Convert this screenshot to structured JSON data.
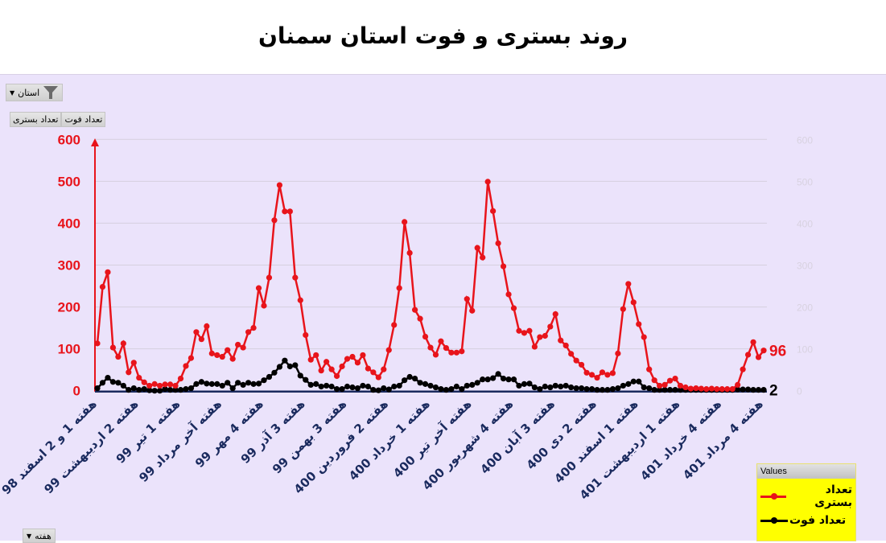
{
  "title": "روند بستری و فوت استان سمنان",
  "filters": {
    "province_label": "استان",
    "fields": [
      "تعداد بستری",
      "تعداد فوت"
    ],
    "week_label": "هفته"
  },
  "colors": {
    "hospitalized": "#e8141b",
    "deaths": "#000000",
    "background": "#ebe3fb",
    "axis_labels": "#1a2a5e",
    "legend_bg": "#ffff00"
  },
  "legend": {
    "header": "Values",
    "items": [
      "تعداد بستری",
      "تعداد فوت"
    ]
  },
  "chart_data": {
    "type": "line",
    "title": "روند بستری و فوت استان سمنان",
    "ylim": [
      0,
      600
    ],
    "yticks": [
      "0",
      "100",
      "200",
      "300",
      "400",
      "500",
      "600"
    ],
    "grid": true,
    "legend_position": "bottom-right",
    "category_labels": [
      "هفته 1 و 2 اسفند 98",
      "هفته 2 اردیبهشت 99",
      "هفته 1 تیر 99",
      "هفته آخر مرداد 99",
      "هفته 4 مهر 99",
      "هفته 3 آذر 99",
      "هفته 3 بهمن 99",
      "هفته 2 فروردین 400",
      "هفته 1 خرداد 400",
      "هفته آخر تیر 400",
      "هفته 4 شهریور 400",
      "هفته 3 آبان 400",
      "هفته 2 دی 400",
      "هفته 1 اسفند 400",
      "هفته 1 اردیبهشت 401",
      "هفته 4 خرداد 401",
      "هفته 4 مرداد 401"
    ],
    "series": [
      {
        "name": "تعداد بستری",
        "color": "#e8141b",
        "last_label": "96",
        "values": [
          113,
          248,
          283,
          103,
          81,
          113,
          44,
          67,
          31,
          20,
          12,
          16,
          12,
          15,
          15,
          12,
          29,
          59,
          78,
          140,
          123,
          154,
          89,
          85,
          81,
          97,
          76,
          110,
          103,
          140,
          150,
          245,
          203,
          270,
          407,
          491,
          428,
          428,
          270,
          216,
          133,
          74,
          85,
          48,
          69,
          51,
          35,
          58,
          76,
          81,
          67,
          85,
          53,
          44,
          32,
          51,
          97,
          157,
          245,
          403,
          329,
          193,
          172,
          129,
          103,
          86,
          118,
          102,
          91,
          91,
          94,
          219,
          191,
          341,
          318,
          499,
          429,
          352,
          297,
          230,
          197,
          143,
          138,
          143,
          105,
          128,
          131,
          153,
          183,
          120,
          108,
          88,
          72,
          62,
          43,
          38,
          31,
          44,
          38,
          42,
          89,
          195,
          255,
          211,
          159,
          128,
          51,
          25,
          12,
          14,
          24,
          29,
          12,
          8,
          5,
          6,
          5,
          4,
          5,
          4,
          4,
          4,
          4,
          14,
          51,
          86,
          116,
          80,
          96
        ]
      },
      {
        "name": "تعداد فوت",
        "color": "#000000",
        "last_label": "2",
        "values": [
          6,
          19,
          31,
          21,
          19,
          12,
          2,
          6,
          2,
          4,
          1,
          0,
          0,
          4,
          2,
          2,
          2,
          4,
          6,
          16,
          21,
          17,
          16,
          16,
          12,
          19,
          6,
          19,
          14,
          19,
          16,
          17,
          25,
          33,
          43,
          57,
          72,
          58,
          61,
          36,
          26,
          14,
          16,
          10,
          12,
          10,
          4,
          4,
          10,
          8,
          6,
          12,
          10,
          2,
          1,
          6,
          3,
          10,
          12,
          25,
          33,
          29,
          19,
          16,
          12,
          8,
          4,
          2,
          4,
          10,
          4,
          12,
          14,
          19,
          27,
          27,
          30,
          40,
          29,
          27,
          27,
          12,
          16,
          17,
          8,
          4,
          10,
          8,
          12,
          10,
          12,
          8,
          6,
          6,
          4,
          4,
          2,
          2,
          2,
          4,
          6,
          12,
          16,
          22,
          22,
          8,
          6,
          2,
          2,
          2,
          2,
          2,
          2,
          2,
          2,
          2,
          2,
          2,
          2,
          2,
          2,
          2,
          2,
          3,
          3,
          3,
          2,
          2,
          2
        ]
      }
    ]
  }
}
